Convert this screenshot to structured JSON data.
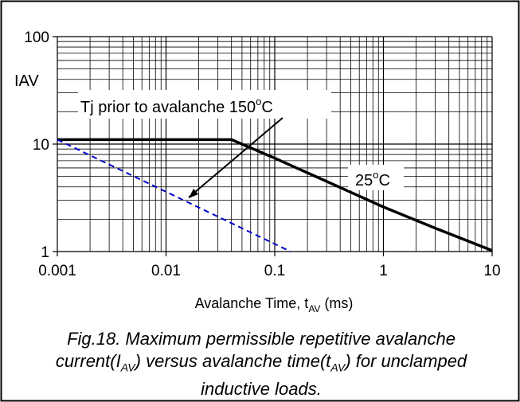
{
  "chart_data": {
    "type": "line",
    "x_scale": "log",
    "y_scale": "log",
    "xlim": [
      0.001,
      10
    ],
    "ylim": [
      1,
      100
    ],
    "xticks": [
      "0.001",
      "0.01",
      "0.1",
      "1",
      "10"
    ],
    "yticks": [
      "1",
      "10",
      "100"
    ],
    "ylabel": "IAV",
    "xlabel": {
      "main": "Avalanche Time, t",
      "sub": "AV",
      "unit": " (ms)"
    },
    "grid": true,
    "series": [
      {
        "name": "25°C",
        "style": "solid",
        "color": "#000000",
        "x": [
          0.001,
          0.04,
          0.1,
          0.3,
          1,
          3,
          10
        ],
        "y": [
          11,
          11,
          7.4,
          4.5,
          2.6,
          1.65,
          1.02
        ]
      },
      {
        "name": "150°C",
        "style": "dashed",
        "color": "#0000cc",
        "x": [
          0.001,
          0.14
        ],
        "y": [
          11,
          1
        ]
      }
    ],
    "annotations": {
      "tj_label": {
        "pre": "Tj prior to avalanche 150",
        "sup": "o",
        "post": "C"
      },
      "t25_label": {
        "pre": "25",
        "sup": "o",
        "post": "C"
      }
    }
  },
  "caption": {
    "l1": "Fig.18.   Maximum permissible repetitive avalanche",
    "l2a": "current(I",
    "l2a_sub": "AV",
    "l2b": ") versus avalanche time(t",
    "l2b_sub": "AV",
    "l2c": ") for unclamped",
    "l3": "inductive loads."
  }
}
